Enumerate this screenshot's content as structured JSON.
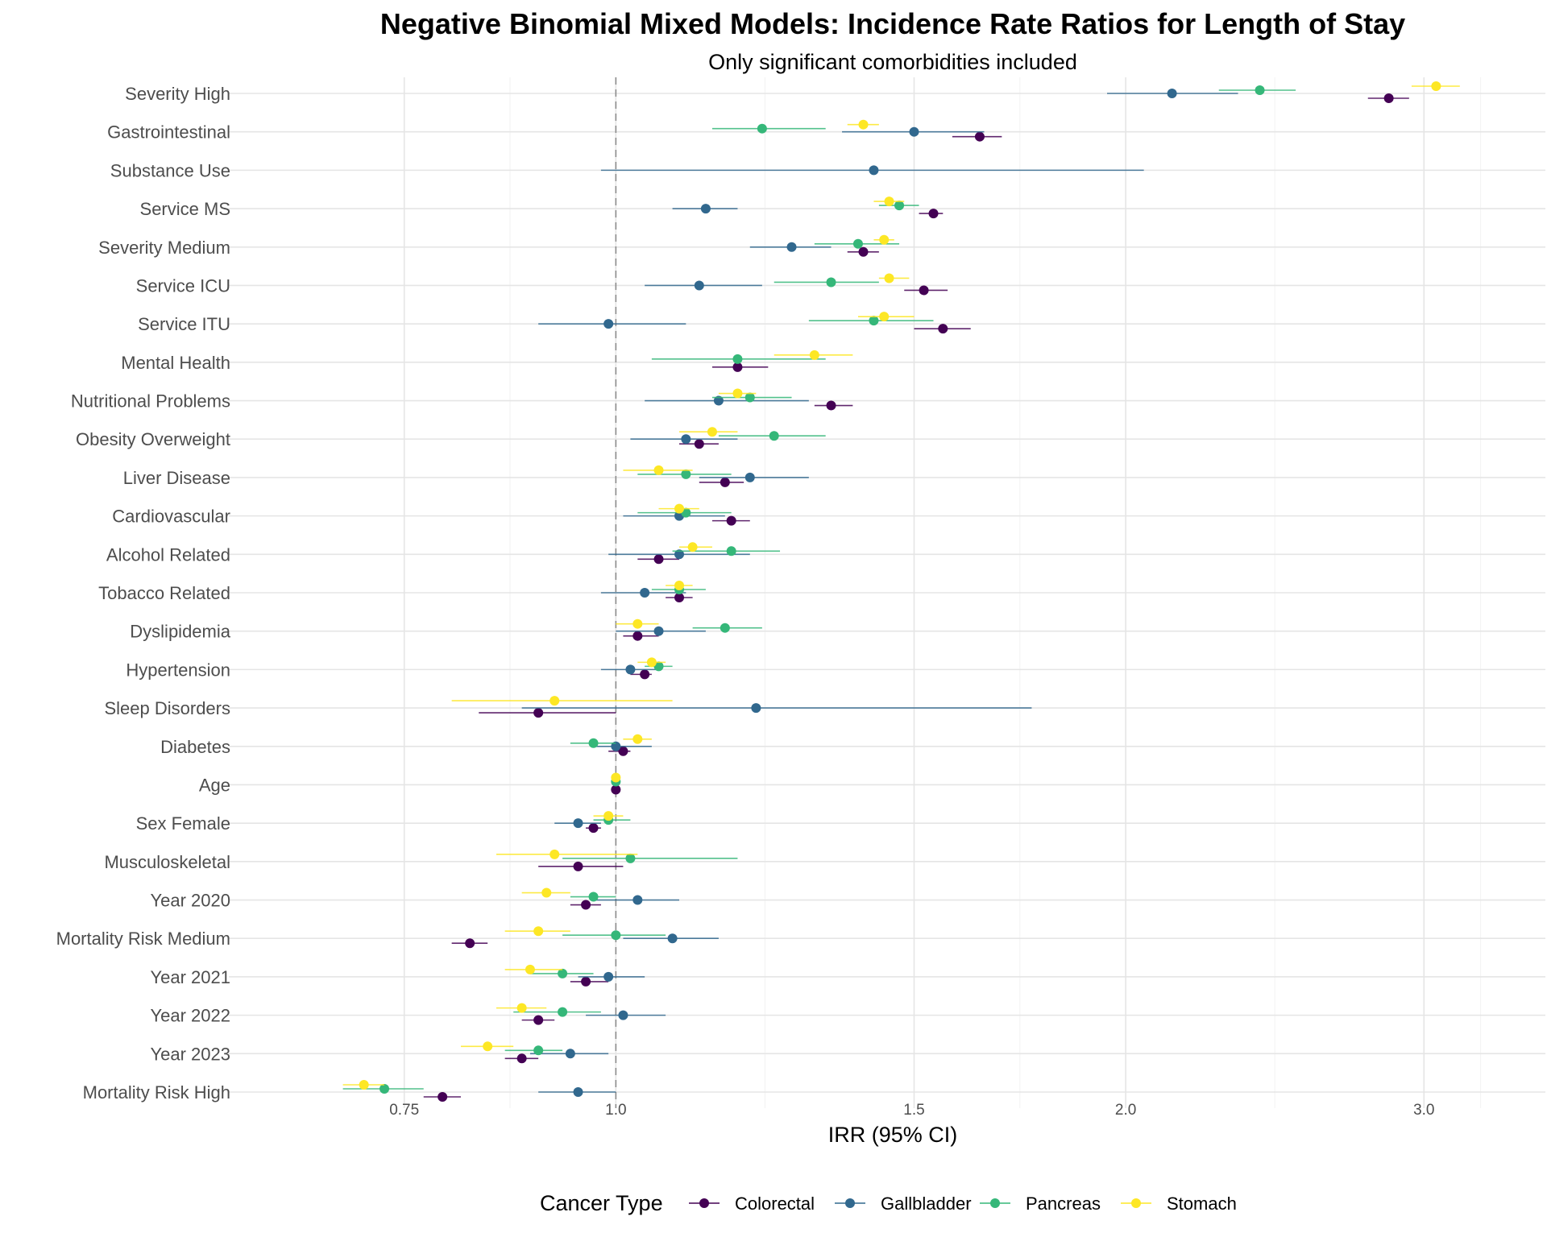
{
  "chart_data": {
    "type": "scatter",
    "subtype": "forest-plot",
    "title": "Negative Binomial Mixed Models: Incidence Rate Ratios for Length of Stay",
    "subtitle": "Only significant comorbidities included",
    "xlabel": "IRR (95% CI)",
    "ylabel": "",
    "xscale": "log",
    "xlim": [
      0.6,
      3.5
    ],
    "xticks": [
      "0.75",
      "1.0",
      "1.5",
      "2.0",
      "3.0"
    ],
    "reference_line": 1.0,
    "grid": true,
    "legend": {
      "title": "Cancer Type",
      "position": "bottom"
    },
    "colors": {
      "Colorectal": "#440154",
      "Gallbladder": "#31688e",
      "Pancreas": "#35b779",
      "Stomach": "#fde725"
    },
    "categories": [
      "Severity High",
      "Gastrointestinal",
      "Substance Use",
      "Service MS",
      "Severity Medium",
      "Service ICU",
      "Service ITU",
      "Mental Health",
      "Nutritional Problems",
      "Obesity Overweight",
      "Liver Disease",
      "Cardiovascular",
      "Alcohol Related",
      "Tobacco Related",
      "Dyslipidemia",
      "Hypertension",
      "Sleep Disorders",
      "Diabetes",
      "Age",
      "Sex Female",
      "Musculoskeletal",
      "Year 2020",
      "Mortality Risk Medium",
      "Year 2021",
      "Year 2022",
      "Year 2023",
      "Mortality Risk High"
    ],
    "series": [
      {
        "name": "Colorectal",
        "points": [
          {
            "category": "Severity High",
            "irr": 2.86,
            "lo": 2.78,
            "hi": 2.94
          },
          {
            "category": "Gastrointestinal",
            "irr": 1.64,
            "lo": 1.58,
            "hi": 1.69
          },
          {
            "category": "Service MS",
            "irr": 1.54,
            "lo": 1.51,
            "hi": 1.56
          },
          {
            "category": "Severity Medium",
            "irr": 1.4,
            "lo": 1.37,
            "hi": 1.43
          },
          {
            "category": "Service ICU",
            "irr": 1.52,
            "lo": 1.48,
            "hi": 1.57
          },
          {
            "category": "Service ITU",
            "irr": 1.56,
            "lo": 1.5,
            "hi": 1.62
          },
          {
            "category": "Mental Health",
            "irr": 1.18,
            "lo": 1.14,
            "hi": 1.23
          },
          {
            "category": "Nutritional Problems",
            "irr": 1.34,
            "lo": 1.31,
            "hi": 1.38
          },
          {
            "category": "Obesity Overweight",
            "irr": 1.12,
            "lo": 1.09,
            "hi": 1.15
          },
          {
            "category": "Liver Disease",
            "irr": 1.16,
            "lo": 1.12,
            "hi": 1.19
          },
          {
            "category": "Cardiovascular",
            "irr": 1.17,
            "lo": 1.14,
            "hi": 1.2
          },
          {
            "category": "Alcohol Related",
            "irr": 1.06,
            "lo": 1.03,
            "hi": 1.09
          },
          {
            "category": "Tobacco Related",
            "irr": 1.09,
            "lo": 1.07,
            "hi": 1.11
          },
          {
            "category": "Dyslipidemia",
            "irr": 1.03,
            "lo": 1.01,
            "hi": 1.06
          },
          {
            "category": "Hypertension",
            "irr": 1.04,
            "lo": 1.02,
            "hi": 1.05
          },
          {
            "category": "Sleep Disorders",
            "irr": 0.9,
            "lo": 0.83,
            "hi": 1.0
          },
          {
            "category": "Diabetes",
            "irr": 1.01,
            "lo": 0.99,
            "hi": 1.02
          },
          {
            "category": "Age",
            "irr": 1.0,
            "lo": 1.0,
            "hi": 1.0
          },
          {
            "category": "Sex Female",
            "irr": 0.97,
            "lo": 0.96,
            "hi": 0.98
          },
          {
            "category": "Musculoskeletal",
            "irr": 0.95,
            "lo": 0.9,
            "hi": 1.01
          },
          {
            "category": "Year 2020",
            "irr": 0.96,
            "lo": 0.94,
            "hi": 0.98
          },
          {
            "category": "Mortality Risk Medium",
            "irr": 0.82,
            "lo": 0.8,
            "hi": 0.84
          },
          {
            "category": "Year 2021",
            "irr": 0.96,
            "lo": 0.94,
            "hi": 0.99
          },
          {
            "category": "Year 2022",
            "irr": 0.9,
            "lo": 0.88,
            "hi": 0.92
          },
          {
            "category": "Year 2023",
            "irr": 0.88,
            "lo": 0.86,
            "hi": 0.9
          },
          {
            "category": "Mortality Risk High",
            "irr": 0.79,
            "lo": 0.77,
            "hi": 0.81
          }
        ]
      },
      {
        "name": "Gallbladder",
        "points": [
          {
            "category": "Severity High",
            "irr": 2.13,
            "lo": 1.95,
            "hi": 2.33
          },
          {
            "category": "Gastrointestinal",
            "irr": 1.5,
            "lo": 1.36,
            "hi": 1.65
          },
          {
            "category": "Substance Use",
            "irr": 1.42,
            "lo": 0.98,
            "hi": 2.05
          },
          {
            "category": "Service MS",
            "irr": 1.13,
            "lo": 1.08,
            "hi": 1.18
          },
          {
            "category": "Severity Medium",
            "irr": 1.27,
            "lo": 1.2,
            "hi": 1.34
          },
          {
            "category": "Service ICU",
            "irr": 1.12,
            "lo": 1.04,
            "hi": 1.22
          },
          {
            "category": "Service ITU",
            "irr": 0.99,
            "lo": 0.9,
            "hi": 1.1
          },
          {
            "category": "Nutritional Problems",
            "irr": 1.15,
            "lo": 1.04,
            "hi": 1.3
          },
          {
            "category": "Obesity Overweight",
            "irr": 1.1,
            "lo": 1.02,
            "hi": 1.18
          },
          {
            "category": "Liver Disease",
            "irr": 1.2,
            "lo": 1.12,
            "hi": 1.3
          },
          {
            "category": "Cardiovascular",
            "irr": 1.09,
            "lo": 1.01,
            "hi": 1.16
          },
          {
            "category": "Alcohol Related",
            "irr": 1.09,
            "lo": 0.99,
            "hi": 1.2
          },
          {
            "category": "Tobacco Related",
            "irr": 1.04,
            "lo": 0.98,
            "hi": 1.1
          },
          {
            "category": "Dyslipidemia",
            "irr": 1.06,
            "lo": 1.0,
            "hi": 1.13
          },
          {
            "category": "Hypertension",
            "irr": 1.02,
            "lo": 0.98,
            "hi": 1.06
          },
          {
            "category": "Sleep Disorders",
            "irr": 1.21,
            "lo": 0.88,
            "hi": 1.76
          },
          {
            "category": "Diabetes",
            "irr": 1.0,
            "lo": 0.97,
            "hi": 1.05
          },
          {
            "category": "Sex Female",
            "irr": 0.95,
            "lo": 0.92,
            "hi": 0.98
          },
          {
            "category": "Year 2020",
            "irr": 1.03,
            "lo": 0.97,
            "hi": 1.09
          },
          {
            "category": "Mortality Risk Medium",
            "irr": 1.08,
            "lo": 1.01,
            "hi": 1.15
          },
          {
            "category": "Year 2021",
            "irr": 0.99,
            "lo": 0.95,
            "hi": 1.04
          },
          {
            "category": "Year 2022",
            "irr": 1.01,
            "lo": 0.96,
            "hi": 1.07
          },
          {
            "category": "Year 2023",
            "irr": 0.94,
            "lo": 0.89,
            "hi": 0.99
          },
          {
            "category": "Mortality Risk High",
            "irr": 0.95,
            "lo": 0.9,
            "hi": 1.0
          }
        ]
      },
      {
        "name": "Pancreas",
        "points": [
          {
            "category": "Severity High",
            "irr": 2.4,
            "lo": 2.27,
            "hi": 2.52
          },
          {
            "category": "Gastrointestinal",
            "irr": 1.22,
            "lo": 1.14,
            "hi": 1.33
          },
          {
            "category": "Service MS",
            "irr": 1.47,
            "lo": 1.43,
            "hi": 1.51
          },
          {
            "category": "Severity Medium",
            "irr": 1.39,
            "lo": 1.31,
            "hi": 1.47
          },
          {
            "category": "Service ICU",
            "irr": 1.34,
            "lo": 1.24,
            "hi": 1.43
          },
          {
            "category": "Service ITU",
            "irr": 1.42,
            "lo": 1.3,
            "hi": 1.54
          },
          {
            "category": "Mental Health",
            "irr": 1.18,
            "lo": 1.05,
            "hi": 1.33
          },
          {
            "category": "Nutritional Problems",
            "irr": 1.2,
            "lo": 1.14,
            "hi": 1.27
          },
          {
            "category": "Obesity Overweight",
            "irr": 1.24,
            "lo": 1.15,
            "hi": 1.33
          },
          {
            "category": "Liver Disease",
            "irr": 1.1,
            "lo": 1.03,
            "hi": 1.17
          },
          {
            "category": "Cardiovascular",
            "irr": 1.1,
            "lo": 1.03,
            "hi": 1.17
          },
          {
            "category": "Alcohol Related",
            "irr": 1.17,
            "lo": 1.08,
            "hi": 1.25
          },
          {
            "category": "Tobacco Related",
            "irr": 1.09,
            "lo": 1.05,
            "hi": 1.13
          },
          {
            "category": "Dyslipidemia",
            "irr": 1.16,
            "lo": 1.11,
            "hi": 1.22
          },
          {
            "category": "Hypertension",
            "irr": 1.06,
            "lo": 1.04,
            "hi": 1.08
          },
          {
            "category": "Diabetes",
            "irr": 0.97,
            "lo": 0.94,
            "hi": 1.0
          },
          {
            "category": "Age",
            "irr": 1.0,
            "lo": 1.0,
            "hi": 1.0
          },
          {
            "category": "Sex Female",
            "irr": 0.99,
            "lo": 0.97,
            "hi": 1.02
          },
          {
            "category": "Musculoskeletal",
            "irr": 1.02,
            "lo": 0.93,
            "hi": 1.18
          },
          {
            "category": "Year 2020",
            "irr": 0.97,
            "lo": 0.94,
            "hi": 1.0
          },
          {
            "category": "Mortality Risk Medium",
            "irr": 1.0,
            "lo": 0.93,
            "hi": 1.07
          },
          {
            "category": "Year 2021",
            "irr": 0.93,
            "lo": 0.89,
            "hi": 0.97
          },
          {
            "category": "Year 2022",
            "irr": 0.93,
            "lo": 0.87,
            "hi": 0.98
          },
          {
            "category": "Year 2023",
            "irr": 0.9,
            "lo": 0.86,
            "hi": 0.93
          },
          {
            "category": "Mortality Risk High",
            "irr": 0.73,
            "lo": 0.69,
            "hi": 0.77
          }
        ]
      },
      {
        "name": "Stomach",
        "points": [
          {
            "category": "Severity High",
            "irr": 3.05,
            "lo": 2.95,
            "hi": 3.15
          },
          {
            "category": "Gastrointestinal",
            "irr": 1.4,
            "lo": 1.37,
            "hi": 1.43
          },
          {
            "category": "Service MS",
            "irr": 1.45,
            "lo": 1.42,
            "hi": 1.48
          },
          {
            "category": "Severity Medium",
            "irr": 1.44,
            "lo": 1.42,
            "hi": 1.46
          },
          {
            "category": "Service ICU",
            "irr": 1.45,
            "lo": 1.43,
            "hi": 1.49
          },
          {
            "category": "Service ITU",
            "irr": 1.44,
            "lo": 1.39,
            "hi": 1.5
          },
          {
            "category": "Mental Health",
            "irr": 1.31,
            "lo": 1.24,
            "hi": 1.38
          },
          {
            "category": "Nutritional Problems",
            "irr": 1.18,
            "lo": 1.15,
            "hi": 1.21
          },
          {
            "category": "Obesity Overweight",
            "irr": 1.14,
            "lo": 1.09,
            "hi": 1.18
          },
          {
            "category": "Liver Disease",
            "irr": 1.06,
            "lo": 1.01,
            "hi": 1.11
          },
          {
            "category": "Cardiovascular",
            "irr": 1.09,
            "lo": 1.06,
            "hi": 1.12
          },
          {
            "category": "Alcohol Related",
            "irr": 1.11,
            "lo": 1.09,
            "hi": 1.14
          },
          {
            "category": "Tobacco Related",
            "irr": 1.09,
            "lo": 1.07,
            "hi": 1.11
          },
          {
            "category": "Dyslipidemia",
            "irr": 1.03,
            "lo": 1.0,
            "hi": 1.06
          },
          {
            "category": "Hypertension",
            "irr": 1.05,
            "lo": 1.03,
            "hi": 1.07
          },
          {
            "category": "Sleep Disorders",
            "irr": 0.92,
            "lo": 0.8,
            "hi": 1.08
          },
          {
            "category": "Diabetes",
            "irr": 1.03,
            "lo": 1.01,
            "hi": 1.05
          },
          {
            "category": "Age",
            "irr": 1.0,
            "lo": 1.0,
            "hi": 1.0
          },
          {
            "category": "Sex Female",
            "irr": 0.99,
            "lo": 0.97,
            "hi": 1.01
          },
          {
            "category": "Musculoskeletal",
            "irr": 0.92,
            "lo": 0.85,
            "hi": 1.03
          },
          {
            "category": "Year 2020",
            "irr": 0.91,
            "lo": 0.88,
            "hi": 0.94
          },
          {
            "category": "Mortality Risk Medium",
            "irr": 0.9,
            "lo": 0.86,
            "hi": 0.94
          },
          {
            "category": "Year 2021",
            "irr": 0.89,
            "lo": 0.86,
            "hi": 0.93
          },
          {
            "category": "Year 2022",
            "irr": 0.88,
            "lo": 0.85,
            "hi": 0.91
          },
          {
            "category": "Year 2023",
            "irr": 0.84,
            "lo": 0.81,
            "hi": 0.87
          },
          {
            "category": "Mortality Risk High",
            "irr": 0.71,
            "lo": 0.69,
            "hi": 0.73
          }
        ]
      }
    ]
  }
}
